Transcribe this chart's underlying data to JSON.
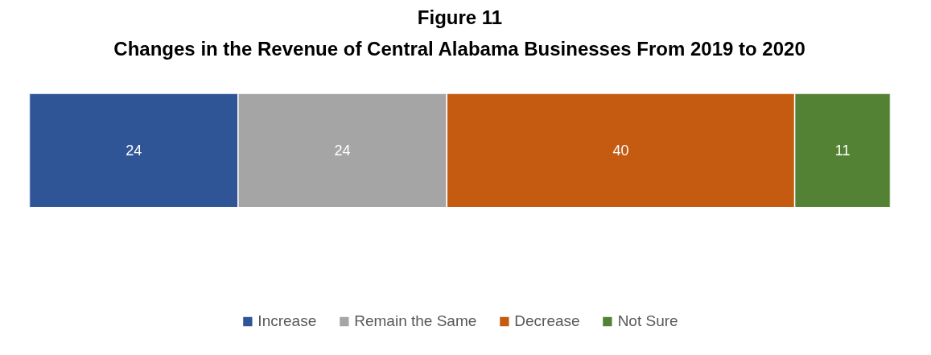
{
  "chart_data": {
    "type": "bar",
    "orientation": "horizontal",
    "stacked": true,
    "title": "Figure 11",
    "subtitle": "Changes in the Revenue of Central Alabama Businesses From 2019 to 2020",
    "categories": [
      null
    ],
    "series": [
      {
        "name": "Increase",
        "color": "#2f5597",
        "values": [
          24
        ]
      },
      {
        "name": "Remain the Same",
        "color": "#a5a5a5",
        "values": [
          24
        ]
      },
      {
        "name": "Decrease",
        "color": "#c55a11",
        "values": [
          40
        ]
      },
      {
        "name": "Not Sure",
        "color": "#548235",
        "values": [
          11
        ]
      }
    ],
    "data_labels": true,
    "legend": "bottom",
    "grid": false,
    "tick_labels": false
  }
}
